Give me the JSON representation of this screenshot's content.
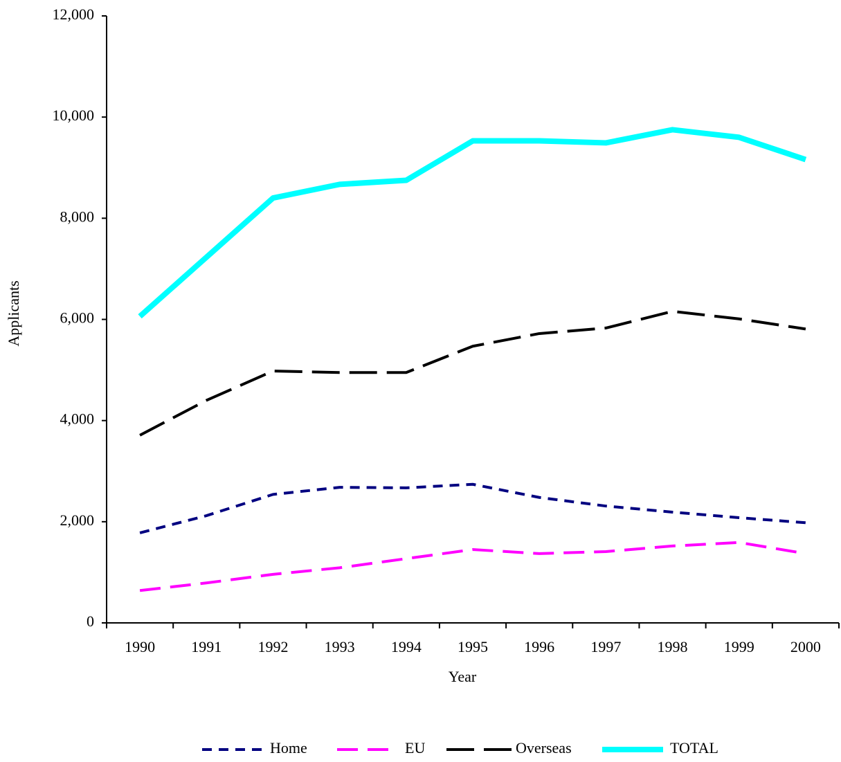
{
  "chart_data": {
    "type": "line",
    "x_label": "Year",
    "y_label": "Applicants",
    "categories": [
      "1990",
      "1991",
      "1992",
      "1993",
      "1994",
      "1995",
      "1996",
      "1997",
      "1998",
      "1999",
      "2000"
    ],
    "series": [
      {
        "name": "Home",
        "color": "#000080",
        "dash": "14,10",
        "width": 4,
        "values": [
          1780,
          2120,
          2540,
          2680,
          2670,
          2740,
          2480,
          2310,
          2190,
          2080,
          1980
        ]
      },
      {
        "name": "EU",
        "color": "#ff00ff",
        "dash": "30,14",
        "width": 4,
        "values": [
          640,
          790,
          960,
          1090,
          1270,
          1450,
          1370,
          1410,
          1520,
          1590,
          1370
        ]
      },
      {
        "name": "Overseas",
        "color": "#000000",
        "dash": "40,14",
        "width": 4,
        "values": [
          3710,
          4400,
          4980,
          4950,
          4950,
          5470,
          5720,
          5830,
          6160,
          6010,
          5810
        ]
      },
      {
        "name": "TOTAL",
        "color": "#00ffff",
        "dash": "none",
        "width": 8,
        "values": [
          6060,
          7230,
          8400,
          8670,
          8750,
          9530,
          9530,
          9490,
          9750,
          9600,
          9160
        ]
      }
    ],
    "ylim": [
      0,
      12000
    ],
    "yticks": [
      0,
      {
        "value": 2000,
        "label": "2,000"
      },
      {
        "value": 4000,
        "label": "4,000"
      },
      {
        "value": 6000,
        "label": "6,000"
      },
      {
        "value": 8000,
        "label": "8,000"
      },
      {
        "value": 10000,
        "label": "10,000"
      },
      {
        "value": 12000,
        "label": "12,000"
      }
    ],
    "legend": "bottom"
  }
}
